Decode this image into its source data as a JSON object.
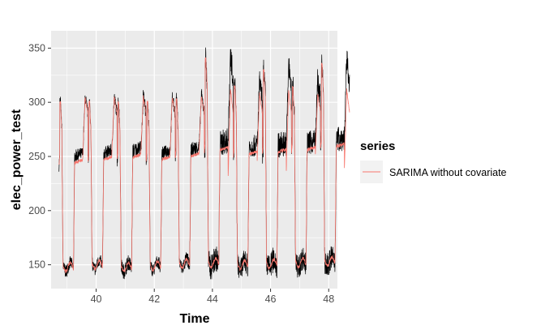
{
  "chart_data": {
    "type": "line",
    "title": "",
    "xlabel": "Time",
    "ylabel": "elec_power_test",
    "xlim": [
      38.45,
      48.3
    ],
    "ylim": [
      128,
      366
    ],
    "x_ticks": [
      40,
      42,
      44,
      46,
      48
    ],
    "y_ticks": [
      150,
      200,
      250,
      300,
      350
    ],
    "grid": true,
    "legend": {
      "title": "series",
      "placement": "right",
      "entries": [
        "SARIMA without covariate"
      ]
    },
    "colors": {
      "panel_bg": "#ebebeb",
      "grid": "#ffffff",
      "actual": "#000000",
      "forecast": "#f8766d"
    },
    "x_start": 38.72,
    "period": 1.0,
    "cycles": [
      {
        "day": 250,
        "peak": 305,
        "trough": 148,
        "noise": 6
      },
      {
        "day": 253,
        "peak": 305,
        "trough": 150,
        "noise": 6
      },
      {
        "day": 255,
        "peak": 305,
        "trough": 148,
        "noise": 7
      },
      {
        "day": 253,
        "peak": 305,
        "trough": 149,
        "noise": 6
      },
      {
        "day": 256,
        "peak": 307,
        "trough": 151,
        "noise": 7
      },
      {
        "day": 262,
        "peak": 345,
        "trough": 152,
        "noise": 12
      },
      {
        "day": 258,
        "peak": 320,
        "trough": 150,
        "noise": 10
      },
      {
        "day": 260,
        "peak": 335,
        "trough": 151,
        "noise": 12
      },
      {
        "day": 262,
        "peak": 320,
        "trough": 152,
        "noise": 11
      },
      {
        "day": 265,
        "peak": 340,
        "trough": 153,
        "noise": 12
      }
    ],
    "series": [
      {
        "name": "",
        "color": "#000000"
      },
      {
        "name": "SARIMA without covariate",
        "color": "#f8766d"
      }
    ]
  }
}
